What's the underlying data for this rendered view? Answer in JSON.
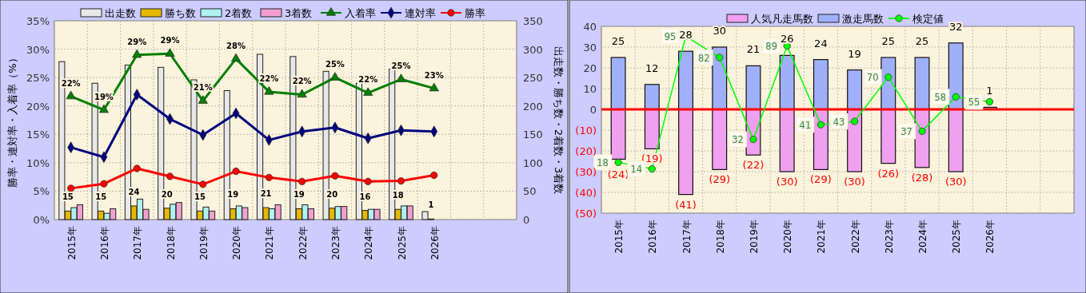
{
  "chart_data": [
    {
      "type": "bar",
      "categories": [
        "2015年",
        "2016年",
        "2017年",
        "2018年",
        "2019年",
        "2020年",
        "2021年",
        "2022年",
        "2023年",
        "2024年",
        "2025年",
        "2026年",
        null,
        null
      ],
      "ylabel": "勝率・連対率・入着率（%）",
      "y2label": "出走数・勝ち数・2着数・3着数",
      "ylim": [
        0,
        35
      ],
      "yticks": [
        {
          "value": 0,
          "label": "0%"
        },
        {
          "value": 5,
          "label": "5%"
        },
        {
          "value": 10,
          "label": "10%"
        },
        {
          "value": 15,
          "label": "15%"
        },
        {
          "value": 20,
          "label": "20%"
        },
        {
          "value": 25,
          "label": "25%"
        },
        {
          "value": 30,
          "label": "30%"
        },
        {
          "value": 35,
          "label": "35%"
        }
      ],
      "y2lim": [
        0,
        350
      ],
      "y2ticks": [
        0,
        50,
        100,
        150,
        200,
        250,
        300,
        350
      ],
      "grid": true,
      "legend": "top",
      "series": [
        {
          "name": "出走数",
          "axis": "y2",
          "color": "#e8e8e8",
          "values": [
            278,
            240,
            272,
            268,
            246,
            227,
            291,
            287,
            261,
            240,
            265,
            14,
            null,
            null
          ]
        },
        {
          "name": "勝ち数",
          "axis": "y2",
          "color": "#e6b800",
          "values": [
            15,
            15,
            24,
            20,
            15,
            19,
            21,
            19,
            20,
            16,
            18,
            1,
            null,
            null
          ],
          "value_labels": [
            "15",
            "15",
            "24",
            "20",
            "15",
            "19",
            "21",
            "19",
            "20",
            "16",
            "18",
            "1",
            null,
            null
          ]
        },
        {
          "name": "2着数",
          "axis": "y2",
          "color": "#b0f0f0",
          "values": [
            21,
            11,
            36,
            27,
            22,
            24,
            19,
            26,
            23,
            18,
            24,
            0,
            null,
            null
          ]
        },
        {
          "name": "3着数",
          "axis": "y2",
          "color": "#f0a0d0",
          "values": [
            26,
            19,
            18,
            30,
            15,
            21,
            26,
            19,
            23,
            18,
            24,
            0,
            null,
            null
          ]
        },
        {
          "name": "入着率",
          "type": "line",
          "axis": "y",
          "color": "#008000",
          "marker": "triangle",
          "values": [
            21.7,
            19.3,
            29.0,
            29.2,
            20.9,
            28.3,
            22.5,
            22.0,
            25.0,
            22.3,
            24.7,
            23.1,
            null,
            null
          ],
          "value_labels": [
            "22%",
            "19%",
            "29%",
            "29%",
            "21%",
            "28%",
            "22%",
            "22%",
            "25%",
            "22%",
            "25%",
            "23%",
            null,
            null
          ]
        },
        {
          "name": "連対率",
          "type": "line",
          "axis": "y",
          "color": "#000080",
          "marker": "diamond",
          "values": [
            12.7,
            11.0,
            22.0,
            17.7,
            14.9,
            18.7,
            14.0,
            15.5,
            16.2,
            14.3,
            15.7,
            15.5,
            null,
            null
          ]
        },
        {
          "name": "勝率",
          "type": "line",
          "axis": "y",
          "color": "#ff0000",
          "marker": "circle",
          "values": [
            5.5,
            6.3,
            9.0,
            7.6,
            6.2,
            8.5,
            7.4,
            6.7,
            7.7,
            6.7,
            6.8,
            7.8,
            null,
            null
          ]
        }
      ]
    },
    {
      "type": "bar",
      "stacked": true,
      "categories": [
        "2015年",
        "2016年",
        "2017年",
        "2018年",
        "2019年",
        "2020年",
        "2021年",
        "2022年",
        "2023年",
        "2024年",
        "2025年",
        "2026年",
        null,
        null
      ],
      "ylim": [
        -50,
        40
      ],
      "yticks": [
        {
          "value": -50,
          "label": "(50)"
        },
        {
          "value": -40,
          "label": "(40)"
        },
        {
          "value": -30,
          "label": "(30)"
        },
        {
          "value": -20,
          "label": "(20)"
        },
        {
          "value": -10,
          "label": "(10)"
        },
        0,
        10,
        20,
        30,
        40
      ],
      "y2lim": [
        -13,
        101
      ],
      "grid": true,
      "legend": "top",
      "ref_lines": [
        {
          "axis": "y",
          "value": 0,
          "color": "#ff0000"
        }
      ],
      "series": [
        {
          "name": "人気凡走馬数",
          "color": "#f0a0f0",
          "values": [
            -24,
            -19,
            -41,
            -29,
            -22,
            -30,
            -29,
            -30,
            -26,
            -28,
            -30,
            0,
            null,
            null
          ],
          "value_labels": [
            "(24)",
            "(19)",
            "(41)",
            "(29)",
            "(22)",
            "(30)",
            "(29)",
            "(30)",
            "(26)",
            "(28)",
            "(30)",
            null,
            null,
            null
          ]
        },
        {
          "name": "激走馬数",
          "color": "#a0b0f8",
          "values": [
            25,
            12,
            28,
            30,
            21,
            26,
            24,
            19,
            25,
            25,
            32,
            1,
            null,
            null
          ],
          "value_labels": [
            "25",
            "12",
            "28",
            "30",
            "21",
            "26",
            "24",
            "19",
            "25",
            "25",
            "32",
            "1",
            null,
            null
          ]
        },
        {
          "name": "検定値",
          "type": "line",
          "axis": "y2",
          "color": "#00ff00",
          "marker": "circle",
          "values": [
            18,
            14,
            95,
            82,
            32,
            89,
            41,
            43,
            70,
            37,
            58,
            55,
            null,
            null
          ],
          "data_labels": true
        }
      ]
    }
  ]
}
